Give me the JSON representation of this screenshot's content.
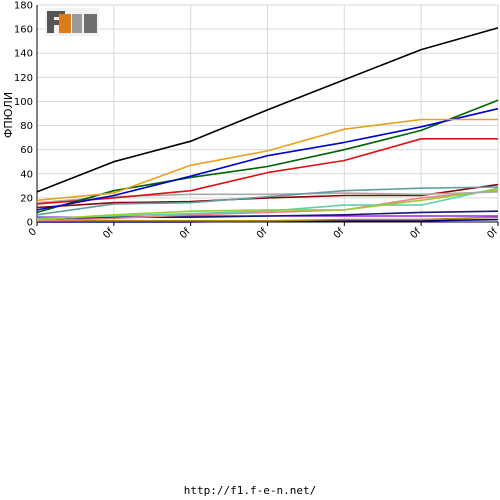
{
  "footer": {
    "url": "http://f1.f-e-n.net/"
  },
  "chart_data": {
    "type": "line",
    "title": "",
    "ylabel": "ФПЮЛИ",
    "xlabel": "",
    "ylim": [
      0,
      180
    ],
    "yticks": [
      0,
      20,
      40,
      60,
      80,
      100,
      120,
      140,
      160,
      180
    ],
    "categories": [
      "0",
      "0f",
      "0f",
      "0f",
      "0f",
      "0f",
      "0f"
    ],
    "grid": true,
    "legend": "none",
    "series": [
      {
        "color": "#000000",
        "values": [
          25,
          50,
          67,
          93,
          118,
          143,
          161
        ]
      },
      {
        "color": "#e8a020",
        "values": [
          18,
          24,
          47,
          59,
          77,
          85,
          85
        ]
      },
      {
        "color": "#0000cc",
        "values": [
          10,
          22,
          38,
          55,
          66,
          79,
          94
        ]
      },
      {
        "color": "#006400",
        "values": [
          8,
          26,
          37,
          46,
          60,
          76,
          101
        ]
      },
      {
        "color": "#dd1111",
        "values": [
          15,
          20,
          26,
          41,
          51,
          69,
          69
        ]
      },
      {
        "color": "#5f9ea0",
        "values": [
          6,
          15,
          16,
          21,
          26,
          28,
          29
        ]
      },
      {
        "color": "#a9a9a9",
        "values": [
          16,
          21,
          23,
          23,
          24,
          23,
          25
        ]
      },
      {
        "color": "#8b0000",
        "values": [
          12,
          16,
          17,
          20,
          22,
          22,
          31
        ]
      },
      {
        "color": "#9acd32",
        "values": [
          2,
          6,
          9,
          10,
          10,
          18,
          27
        ]
      },
      {
        "color": "#66cdaa",
        "values": [
          3,
          5,
          7,
          9,
          14,
          14,
          28
        ]
      },
      {
        "color": "#f08080",
        "values": [
          1,
          3,
          6,
          8,
          10,
          20,
          26
        ]
      },
      {
        "color": "#191970",
        "values": [
          1,
          4,
          4,
          5,
          6,
          8,
          9
        ]
      },
      {
        "color": "#8a2be2",
        "values": [
          4,
          4,
          5,
          5,
          5,
          5,
          5
        ]
      },
      {
        "color": "#b8860b",
        "values": [
          1,
          1,
          1,
          1,
          2,
          2,
          4
        ]
      },
      {
        "color": "#00008b",
        "values": [
          0,
          0,
          0,
          1,
          1,
          1,
          2
        ]
      }
    ]
  }
}
